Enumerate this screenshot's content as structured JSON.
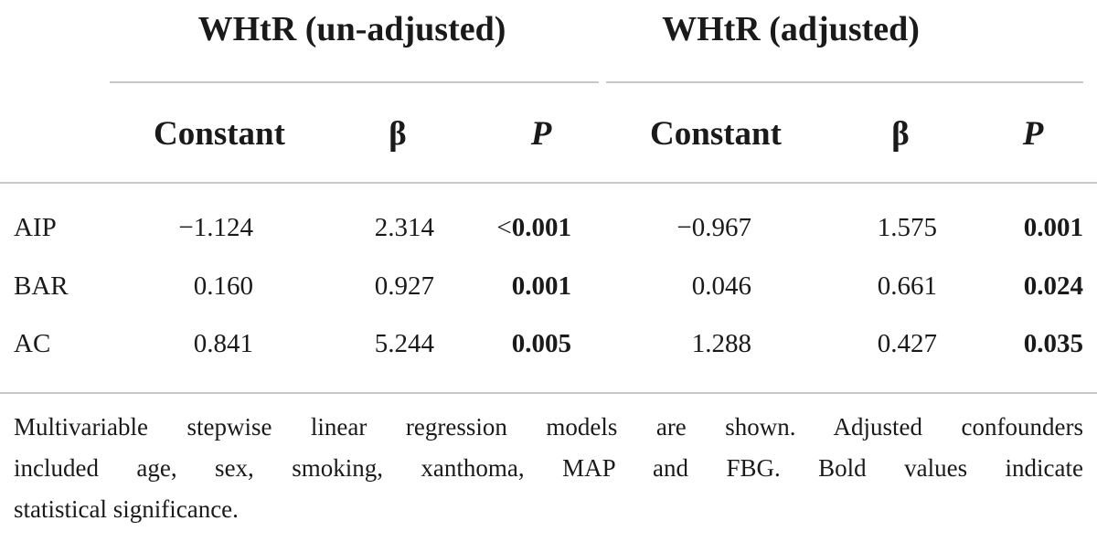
{
  "header": {
    "groups": [
      "WHtR (un-adjusted)",
      "WHtR (adjusted)"
    ],
    "columns": [
      "Constant",
      "β",
      "P",
      "Constant",
      "β",
      "P"
    ]
  },
  "table": {
    "rows": [
      {
        "label": "AIP",
        "cells": [
          {
            "text": "−1.124"
          },
          {
            "text": "2.314"
          },
          {
            "prefix": "<",
            "text": "0.001",
            "bold": true
          },
          {
            "text": "−0.967"
          },
          {
            "text": "1.575"
          },
          {
            "text": "0.001",
            "bold": true
          }
        ]
      },
      {
        "label": "BAR",
        "cells": [
          {
            "text": "0.160"
          },
          {
            "text": "0.927"
          },
          {
            "text": "0.001",
            "bold": true
          },
          {
            "text": "0.046"
          },
          {
            "text": "0.661"
          },
          {
            "text": "0.024",
            "bold": true
          }
        ]
      },
      {
        "label": "AC",
        "cells": [
          {
            "text": "0.841"
          },
          {
            "text": "5.244"
          },
          {
            "text": "0.005",
            "bold": true
          },
          {
            "text": "1.288"
          },
          {
            "text": "0.427"
          },
          {
            "text": "0.035",
            "bold": true
          }
        ]
      }
    ]
  },
  "footnote": {
    "lines": [
      "Multivariable stepwise linear regression models are shown. Adjusted confounders",
      "included age, sex, smoking, xanthoma, MAP and FBG. Bold values indicate",
      "statistical significance."
    ]
  }
}
